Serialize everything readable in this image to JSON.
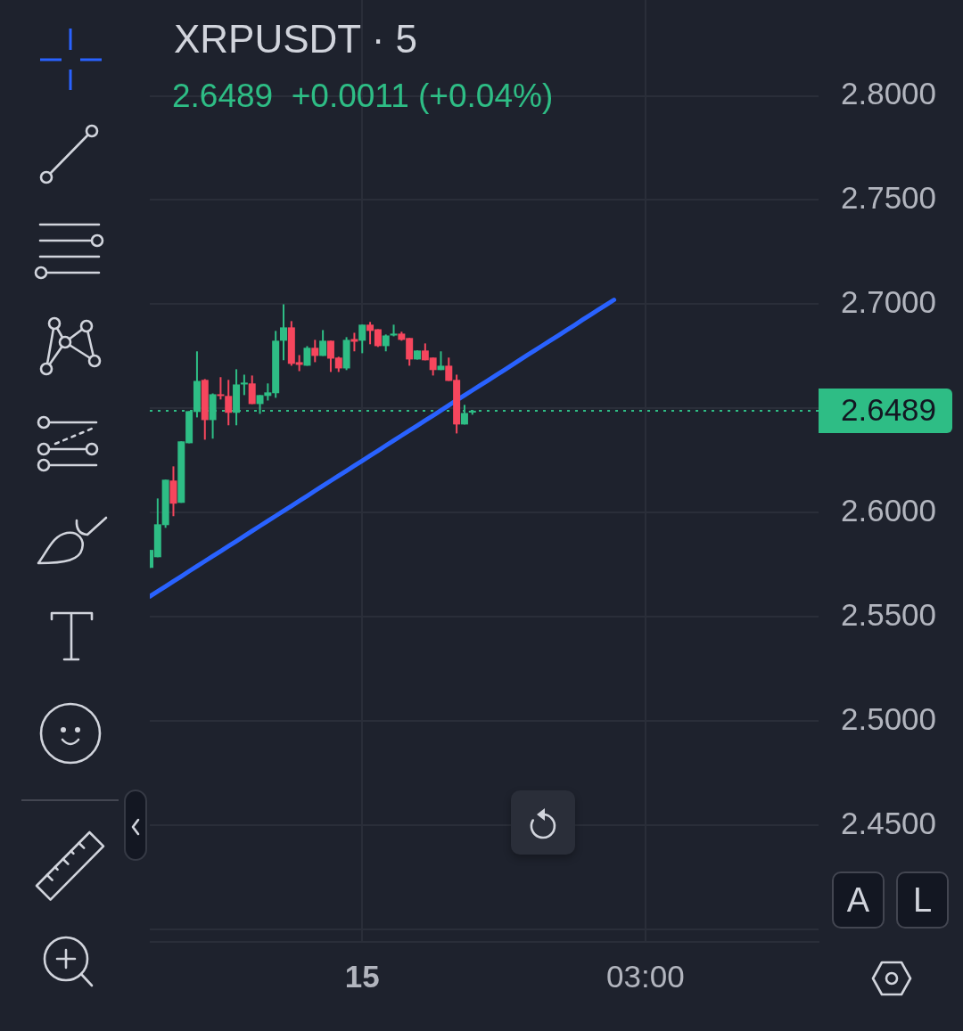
{
  "chart_data": {
    "type": "candlestick",
    "title": "XRPUSDT · 5",
    "subtitle": "2.6489  +0.0011 (+0.04%)",
    "categories": [
      null,
      null,
      null,
      null,
      null,
      null,
      null,
      null,
      null,
      null,
      null,
      null,
      null,
      null,
      null,
      null,
      null,
      null,
      null,
      null,
      null,
      null,
      null,
      null,
      null,
      null,
      null,
      "15",
      null,
      null,
      null,
      null,
      null,
      null,
      null,
      null,
      null,
      null,
      null,
      null,
      null,
      null,
      null,
      null,
      null,
      null,
      null,
      null,
      null,
      null,
      null,
      null,
      null,
      null,
      null,
      null,
      null,
      null,
      null,
      null,
      null,
      null,
      null,
      "03:00",
      null,
      null,
      null,
      null,
      null,
      null,
      null,
      null,
      null,
      null,
      null,
      null,
      null,
      null,
      null,
      null,
      null,
      null,
      null,
      null,
      null,
      null
    ],
    "ohlc": [
      [
        2.5735,
        2.5821,
        2.5735,
        2.5821
      ],
      [
        2.5786,
        2.6068,
        2.5786,
        2.5944
      ],
      [
        2.594,
        2.6158,
        2.5927,
        2.6158
      ],
      [
        2.6154,
        2.6222,
        2.5983,
        2.6043
      ],
      [
        2.6047,
        2.6342,
        2.6047,
        2.6342
      ],
      [
        2.6333,
        2.6487,
        2.6333,
        2.6487
      ],
      [
        2.6483,
        2.6774,
        2.6457,
        2.6632
      ],
      [
        2.6637,
        2.6641,
        2.635,
        2.6444
      ],
      [
        2.6444,
        2.6572,
        2.6355,
        2.6568
      ],
      [
        2.6568,
        2.665,
        2.6543,
        2.656
      ],
      [
        2.656,
        2.6637,
        2.6419,
        2.6479
      ],
      [
        2.6479,
        2.6688,
        2.6419,
        2.6615
      ],
      [
        2.6615,
        2.6662,
        2.6564,
        2.6624
      ],
      [
        2.662,
        2.6658,
        2.6521,
        2.6521
      ],
      [
        2.6521,
        2.6564,
        2.6474,
        2.6564
      ],
      [
        2.656,
        2.662,
        2.6538,
        2.6577
      ],
      [
        2.6573,
        2.6872,
        2.6551,
        2.6825
      ],
      [
        2.6825,
        2.7,
        2.6731,
        2.6889
      ],
      [
        2.6889,
        2.6919,
        2.6705,
        2.6714
      ],
      [
        2.6722,
        2.6756,
        2.6679,
        2.6709
      ],
      [
        2.6705,
        2.6799,
        2.6705,
        2.6791
      ],
      [
        2.6791,
        2.6829,
        2.6722,
        2.6752
      ],
      [
        2.6752,
        2.6876,
        2.6752,
        2.6825
      ],
      [
        2.6825,
        2.6825,
        2.6675,
        2.6739
      ],
      [
        2.6744,
        2.6748,
        2.6675,
        2.6692
      ],
      [
        2.6692,
        2.6842,
        2.6684,
        2.6829
      ],
      [
        2.6833,
        2.6863,
        2.6774,
        2.682
      ],
      [
        2.6825,
        2.6902,
        2.6765,
        2.6902
      ],
      [
        2.6902,
        2.6915,
        2.6808,
        2.6872
      ],
      [
        2.688,
        2.688,
        2.6795,
        2.6799
      ],
      [
        2.6799,
        2.6855,
        2.6774,
        2.685
      ],
      [
        2.685,
        2.6902,
        2.6846,
        2.6859
      ],
      [
        2.6859,
        2.6868,
        2.6825,
        2.6829
      ],
      [
        2.6838,
        2.6838,
        2.6705,
        2.6735
      ],
      [
        2.6735,
        2.6778,
        2.6735,
        2.6778
      ],
      [
        2.6778,
        2.6812,
        2.6731,
        2.6731
      ],
      [
        2.6744,
        2.6744,
        2.6658,
        2.6684
      ],
      [
        2.6684,
        2.6774,
        2.6684,
        2.6705
      ],
      [
        2.6705,
        2.6744,
        2.6632,
        2.6632
      ],
      [
        2.6637,
        2.6662,
        2.638,
        2.6423
      ],
      [
        2.6423,
        2.6517,
        2.6423,
        2.6478
      ],
      [
        2.648,
        2.6492,
        2.647,
        2.6489
      ],
      null,
      null,
      null,
      null,
      null,
      null,
      null,
      null,
      null,
      null,
      null,
      null,
      null,
      null,
      null,
      null,
      null,
      null,
      null,
      null,
      null,
      null,
      null,
      null,
      null,
      null,
      null,
      null,
      null,
      null,
      null,
      null,
      null,
      null,
      null,
      null,
      null,
      null,
      null,
      null,
      null,
      null,
      null,
      null
    ],
    "colors": [
      "#2ebd85",
      "#2ebd85",
      "#2ebd85",
      "#f6465d",
      "#2ebd85",
      "#2ebd85",
      "#2ebd85",
      "#f6465d",
      "#2ebd85",
      "#f6465d",
      "#f6465d",
      "#2ebd85",
      "#2ebd85",
      "#f6465d",
      "#2ebd85",
      "#2ebd85",
      "#2ebd85",
      "#2ebd85",
      "#f6465d",
      "#f6465d",
      "#2ebd85",
      "#f6465d",
      "#2ebd85",
      "#f6465d",
      "#f6465d",
      "#2ebd85",
      "#f6465d",
      "#2ebd85",
      "#f6465d",
      "#f6465d",
      "#2ebd85",
      "#2ebd85",
      "#f6465d",
      "#f6465d",
      "#2ebd85",
      "#f6465d",
      "#f6465d",
      "#2ebd85",
      "#f6465d",
      "#f6465d",
      "#2ebd85",
      "#2ebd85",
      null,
      null,
      null,
      null,
      null,
      null,
      null,
      null,
      null,
      null,
      null,
      null,
      null,
      null,
      null,
      null,
      null,
      null,
      null,
      null,
      null,
      null,
      null,
      null,
      null,
      null,
      null,
      null,
      null,
      null,
      null,
      null,
      null,
      null,
      null,
      null,
      null,
      null,
      null,
      null,
      null,
      null,
      null,
      null
    ],
    "series": [
      {
        "type": "line",
        "color": "#2962ff",
        "values": [
          2.5598,
          2.5622,
          2.5646,
          2.567,
          2.5694,
          2.5719,
          2.5743,
          2.5767,
          2.5791,
          2.5815,
          2.5839,
          2.5863,
          2.5887,
          2.5912,
          2.5936,
          2.596,
          2.5984,
          2.6008,
          2.6032,
          2.6056,
          2.608,
          2.6105,
          2.6129,
          2.6153,
          2.6177,
          2.6201,
          2.6225,
          2.6249,
          2.6273,
          2.6297,
          2.6322,
          2.6346,
          2.637,
          2.6394,
          2.6418,
          2.6442,
          2.6466,
          2.649,
          2.6515,
          2.6539,
          2.6563,
          2.6587,
          2.6611,
          2.6635,
          2.6659,
          2.6683,
          2.6707,
          2.6732,
          2.6756,
          2.678,
          2.6804,
          2.6828,
          2.6852,
          2.6876,
          2.69,
          2.6925,
          2.6949,
          2.6973,
          2.6997,
          2.7021,
          null,
          null,
          null,
          null,
          null,
          null,
          null,
          null,
          null,
          null,
          null,
          null,
          null,
          null,
          null,
          null,
          null,
          null,
          null,
          null,
          null,
          null,
          null,
          null,
          null,
          null
        ]
      }
    ],
    "ylim": [
      2.394,
      2.846
    ],
    "yticks": [
      {
        "value": 2.4,
        "label": null
      },
      {
        "value": 2.45,
        "label": "2.4500"
      },
      {
        "value": 2.5,
        "label": "2.5000"
      },
      {
        "value": 2.55,
        "label": "2.5500"
      },
      {
        "value": 2.6,
        "label": "2.6000"
      },
      {
        "value": 2.65,
        "label": null
      },
      {
        "value": 2.7,
        "label": "2.7000"
      },
      {
        "value": 2.75,
        "label": "2.7500"
      },
      {
        "value": 2.8,
        "label": "2.8000"
      }
    ],
    "ref_lines": [
      {
        "axis": "y",
        "value": 2.6489,
        "label": "2.6489",
        "color": "#2ebd85",
        "line_style": "dotted"
      }
    ],
    "grid": true,
    "legend": false,
    "annotations": [
      "A",
      "L"
    ]
  }
}
